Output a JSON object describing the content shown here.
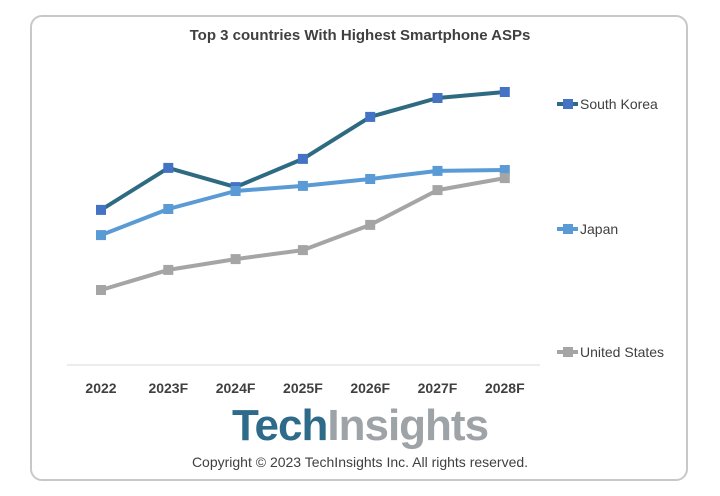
{
  "chart_data": {
    "type": "line",
    "title": "Top 3 countries With Highest Smartphone ASPs",
    "categories": [
      "2022",
      "2023F",
      "2024F",
      "2025F",
      "2026F",
      "2027F",
      "2028F"
    ],
    "ylim": [
      0,
      100
    ],
    "y_axis_shown": false,
    "grid": false,
    "legend_position": "right",
    "series": [
      {
        "name": "South Korea",
        "color": "#2e6b82",
        "marker_color": "#4472c4",
        "values": [
          51.7,
          65.7,
          59.3,
          68.7,
          82.7,
          89,
          91
        ]
      },
      {
        "name": "Japan",
        "color": "#5b9bd5",
        "marker_color": "#5b9bd5",
        "values": [
          43.3,
          52,
          58,
          59.7,
          62,
          64.7,
          65
        ]
      },
      {
        "name": "United States",
        "color": "#a5a5a5",
        "marker_color": "#a5a5a5",
        "values": [
          25,
          31.7,
          35.3,
          38.3,
          46.7,
          58.3,
          62.3
        ]
      }
    ]
  },
  "logo": {
    "part1": "Tech",
    "part2": "Insights",
    "color1": "#2e6b8a",
    "color2": "#9ea3a8"
  },
  "copyright": "Copyright © 2023 TechInsights Inc.  All rights reserved."
}
